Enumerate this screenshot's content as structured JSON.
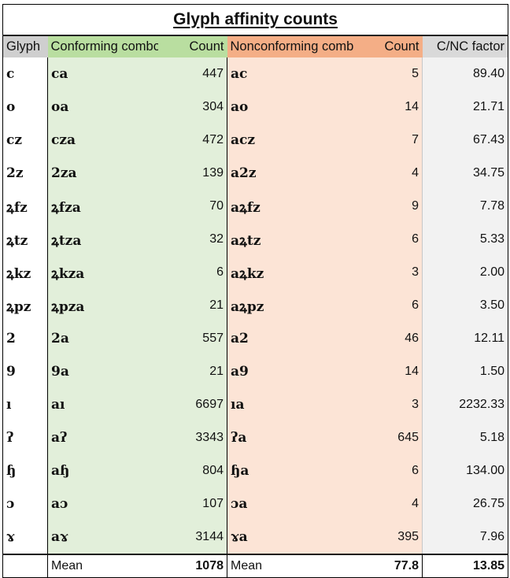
{
  "title": "Glyph affinity counts",
  "headers": {
    "glyph": "Glyph",
    "conforming_combo": "Conforming combo",
    "conforming_count": "Count",
    "nonconforming_combo": "Nonconforming combo",
    "nonconforming_count": "Count",
    "factor": "C/NC factor"
  },
  "rows": [
    {
      "glyph": "c",
      "conf_combo": "ca",
      "conf_count": "447",
      "nc_combo": "ac",
      "nc_count": "5",
      "factor": "89.40"
    },
    {
      "glyph": "o",
      "conf_combo": "oa",
      "conf_count": "304",
      "nc_combo": "ao",
      "nc_count": "14",
      "factor": "21.71"
    },
    {
      "glyph": "cz",
      "conf_combo": "cza",
      "conf_count": "472",
      "nc_combo": "acz",
      "nc_count": "7",
      "factor": "67.43"
    },
    {
      "glyph": "2z",
      "conf_combo": "2za",
      "conf_count": "139",
      "nc_combo": "a2z",
      "nc_count": "4",
      "factor": "34.75"
    },
    {
      "glyph": "ꝝfz",
      "conf_combo": "ꝝfza",
      "conf_count": "70",
      "nc_combo": "aꝝfz",
      "nc_count": "9",
      "factor": "7.78"
    },
    {
      "glyph": "ꝝtz",
      "conf_combo": "ꝝtza",
      "conf_count": "32",
      "nc_combo": "aꝝtz",
      "nc_count": "6",
      "factor": "5.33"
    },
    {
      "glyph": "ꝝkz",
      "conf_combo": "ꝝkza",
      "conf_count": "6",
      "nc_combo": "aꝝkz",
      "nc_count": "3",
      "factor": "2.00"
    },
    {
      "glyph": "ꝝpz",
      "conf_combo": "ꝝpza",
      "conf_count": "21",
      "nc_combo": "aꝝpz",
      "nc_count": "6",
      "factor": "3.50"
    },
    {
      "glyph": "2",
      "conf_combo": "2a",
      "conf_count": "557",
      "nc_combo": "a2",
      "nc_count": "46",
      "factor": "12.11"
    },
    {
      "glyph": "9",
      "conf_combo": "9a",
      "conf_count": "21",
      "nc_combo": "a9",
      "nc_count": "14",
      "factor": "1.50"
    },
    {
      "glyph": "ı",
      "conf_combo": "aı",
      "conf_count": "6697",
      "nc_combo": "ıa",
      "nc_count": "3",
      "factor": "2232.33"
    },
    {
      "glyph": "ʔ",
      "conf_combo": "aʔ",
      "conf_count": "3343",
      "nc_combo": "ʔa",
      "nc_count": "645",
      "factor": "5.18"
    },
    {
      "glyph": "ɧ",
      "conf_combo": "aɧ",
      "conf_count": "804",
      "nc_combo": "ɧa",
      "nc_count": "6",
      "factor": "134.00"
    },
    {
      "glyph": "ɔ",
      "conf_combo": "aɔ",
      "conf_count": "107",
      "nc_combo": "ɔa",
      "nc_count": "4",
      "factor": "26.75"
    },
    {
      "glyph": "ɤ",
      "conf_combo": "aɤ",
      "conf_count": "3144",
      "nc_combo": "ɤa",
      "nc_count": "395",
      "factor": "7.96"
    }
  ],
  "footer": {
    "glyph": "",
    "conf_label": "Mean",
    "conf_mean": "1078",
    "nc_label": "Mean",
    "nc_mean": "77.8",
    "factor_mean": "13.85"
  },
  "colors": {
    "conforming_header": "#b9dea0",
    "conforming_fill": "#e2efda",
    "nonconforming_header": "#f4ae86",
    "nonconforming_fill": "#fce4d6",
    "glyph_header": "#cfcfcf",
    "factor_fill": "#f2f2f2"
  }
}
